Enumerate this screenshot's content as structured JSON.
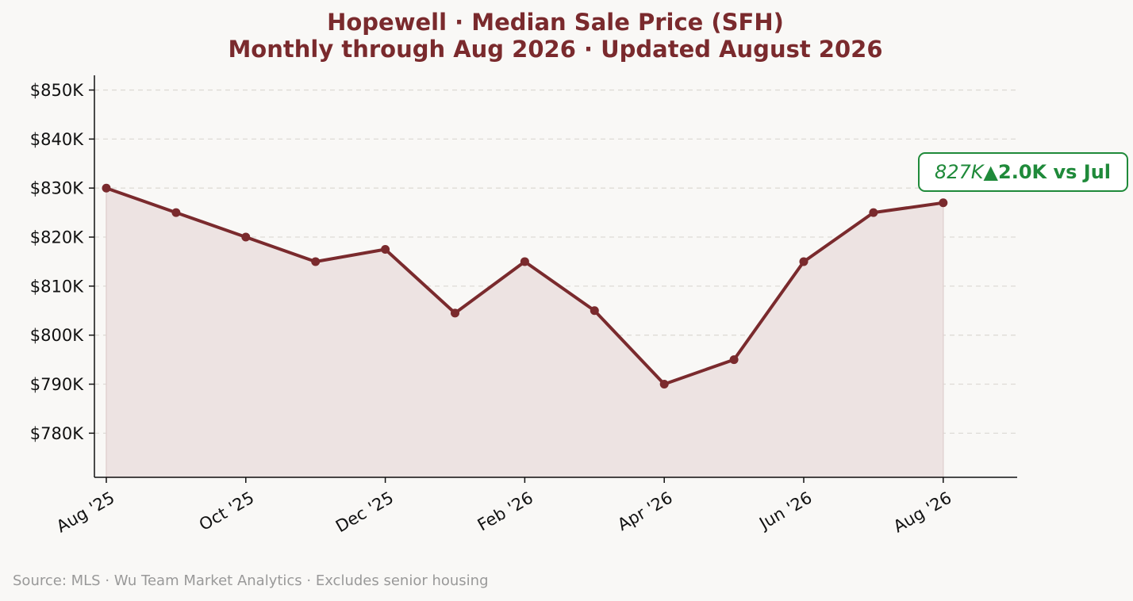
{
  "chart_data": {
    "type": "line",
    "title": "Hopewell  ·  Median Sale Price (SFH)",
    "subtitle": "Monthly through Aug 2026  ·  Updated August 2026",
    "xlabel": "",
    "ylabel": "",
    "x": [
      "Aug '25",
      "Sep '25",
      "Oct '25",
      "Nov '25",
      "Dec '25",
      "Jan '26",
      "Feb '26",
      "Mar '26",
      "Apr '26",
      "May '26",
      "Jun '26",
      "Jul '26",
      "Aug '26"
    ],
    "x_tick_labels": [
      "Aug '25",
      "Oct '25",
      "Dec '25",
      "Feb '26",
      "Apr '26",
      "Jun '26",
      "Aug '26"
    ],
    "values": [
      830000,
      825000,
      820000,
      815000,
      817500,
      804500,
      815000,
      805000,
      790000,
      795000,
      815000,
      825000,
      827000
    ],
    "ylim": [
      771000,
      853000
    ],
    "y_ticks": [
      780000,
      790000,
      800000,
      810000,
      820000,
      830000,
      840000,
      850000
    ],
    "y_tick_labels": [
      "$780K",
      "$790K",
      "$800K",
      "$810K",
      "$820K",
      "$830K",
      "$840K",
      "$850K"
    ],
    "grid": "y-dashed",
    "annotation": {
      "value_text": "827K",
      "delta_text": "▲2.0K vs Jul"
    },
    "line_color": "#7a2a2d",
    "fill_color": "#ede3e2",
    "title_color": "#7a2a2d",
    "annotation_color": "#1f8a3a"
  },
  "footer": {
    "source": "Source: MLS · Wu Team Market Analytics · Excludes senior housing"
  }
}
